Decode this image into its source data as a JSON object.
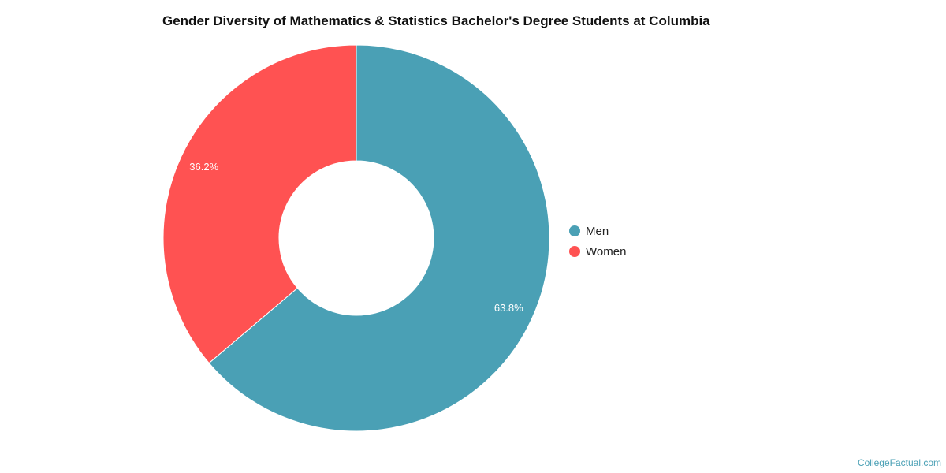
{
  "chart_data": {
    "type": "pie",
    "variant": "donut",
    "title": "Gender Diversity of Mathematics & Statistics Bachelor's Degree Students at Columbia",
    "categories": [
      "Men",
      "Women"
    ],
    "values": [
      63.8,
      36.2
    ],
    "data_labels": [
      "63.8%",
      "36.2%"
    ],
    "colors": [
      "#4aa0b5",
      "#ff5252"
    ],
    "legend": "right"
  },
  "footer": {
    "credit": "CollegeFactual.com"
  }
}
